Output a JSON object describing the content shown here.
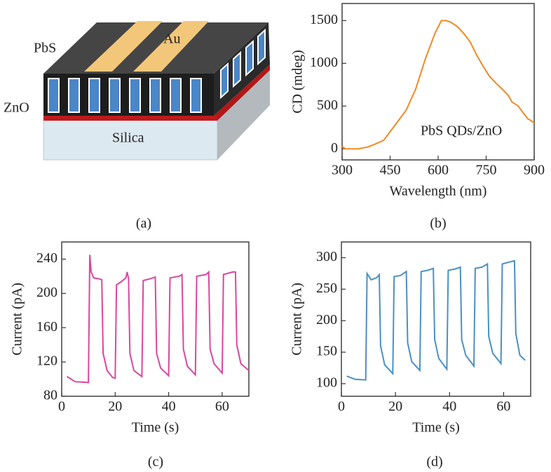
{
  "diagram": {
    "labels": [
      "PbS",
      "Au",
      "ZnO",
      "Silica"
    ],
    "caption": "(a)"
  },
  "chart_data": [
    {
      "type": "line",
      "caption": "(b)",
      "xlabel": "Wavelength (nm)",
      "ylabel": "CD (mdeg)",
      "annotation": "PbS QDs/ZnO",
      "xlim": [
        300,
        900
      ],
      "ylim": [
        -130,
        1700
      ],
      "xticks": [
        300,
        450,
        600,
        750,
        900
      ],
      "yticks": [
        0,
        500,
        1000,
        1500
      ],
      "x": [
        300,
        310,
        330,
        350,
        380,
        400,
        430,
        450,
        470,
        500,
        530,
        560,
        590,
        610,
        625,
        640,
        660,
        680,
        700,
        720,
        740,
        760,
        780,
        800,
        820,
        830,
        850,
        860,
        870,
        880,
        890,
        900
      ],
      "series": [
        {
          "color": "#f08a24",
          "values": [
            30,
            0,
            0,
            0,
            20,
            50,
            100,
            200,
            300,
            450,
            700,
            1050,
            1350,
            1500,
            1500,
            1480,
            1430,
            1350,
            1250,
            1100,
            970,
            850,
            770,
            700,
            620,
            550,
            500,
            450,
            400,
            350,
            330,
            300
          ]
        }
      ]
    },
    {
      "type": "line",
      "caption": "(c)",
      "xlabel": "Time (s)",
      "ylabel": "Current (pA)",
      "xlim": [
        0,
        70
      ],
      "ylim": [
        80,
        260
      ],
      "xticks": [
        0,
        20,
        40,
        60
      ],
      "yticks": [
        80,
        120,
        160,
        200,
        240
      ],
      "x": [
        2,
        5,
        10,
        10.5,
        11,
        12,
        14,
        15,
        15.5,
        17,
        19,
        20,
        20.5,
        22,
        24,
        24.5,
        25,
        25.5,
        27,
        30,
        30.5,
        33,
        35,
        35.5,
        37,
        40,
        40.5,
        44,
        45,
        45.5,
        47,
        50,
        50.5,
        54,
        55,
        55.5,
        57,
        60,
        60.5,
        64,
        65,
        65.5,
        67,
        70
      ],
      "series": [
        {
          "color": "#d9479f",
          "values": [
            103,
            97,
            96,
            245,
            225,
            218,
            217,
            216,
            130,
            110,
            102,
            101,
            210,
            213,
            218,
            225,
            217,
            130,
            110,
            103,
            215,
            217,
            219,
            130,
            113,
            104,
            218,
            220,
            222,
            135,
            115,
            105,
            220,
            222,
            225,
            135,
            118,
            107,
            222,
            225,
            225,
            140,
            118,
            110
          ]
        }
      ]
    },
    {
      "type": "line",
      "caption": "(d)",
      "xlabel": "Time (s)",
      "ylabel": "Current (pA)",
      "xlim": [
        0,
        70
      ],
      "ylim": [
        80,
        325
      ],
      "xticks": [
        0,
        20,
        40,
        60
      ],
      "yticks": [
        100,
        150,
        200,
        250,
        300
      ],
      "x": [
        2,
        5,
        9,
        9.5,
        11,
        13,
        14,
        14.5,
        16,
        19,
        19.5,
        22,
        24,
        24.5,
        26,
        29,
        29.5,
        32,
        34,
        34.5,
        36,
        39,
        39.5,
        42,
        44,
        44.5,
        46,
        49,
        49.5,
        52,
        54,
        54.5,
        56,
        59,
        59.5,
        62,
        64,
        64.5,
        66,
        68
      ],
      "series": [
        {
          "color": "#4a90c4",
          "values": [
            112,
            107,
            106,
            275,
            265,
            268,
            273,
            160,
            130,
            116,
            270,
            272,
            278,
            165,
            135,
            121,
            278,
            280,
            283,
            170,
            140,
            123,
            280,
            282,
            285,
            170,
            145,
            128,
            283,
            285,
            290,
            175,
            148,
            132,
            290,
            293,
            295,
            180,
            145,
            137
          ]
        }
      ]
    }
  ]
}
